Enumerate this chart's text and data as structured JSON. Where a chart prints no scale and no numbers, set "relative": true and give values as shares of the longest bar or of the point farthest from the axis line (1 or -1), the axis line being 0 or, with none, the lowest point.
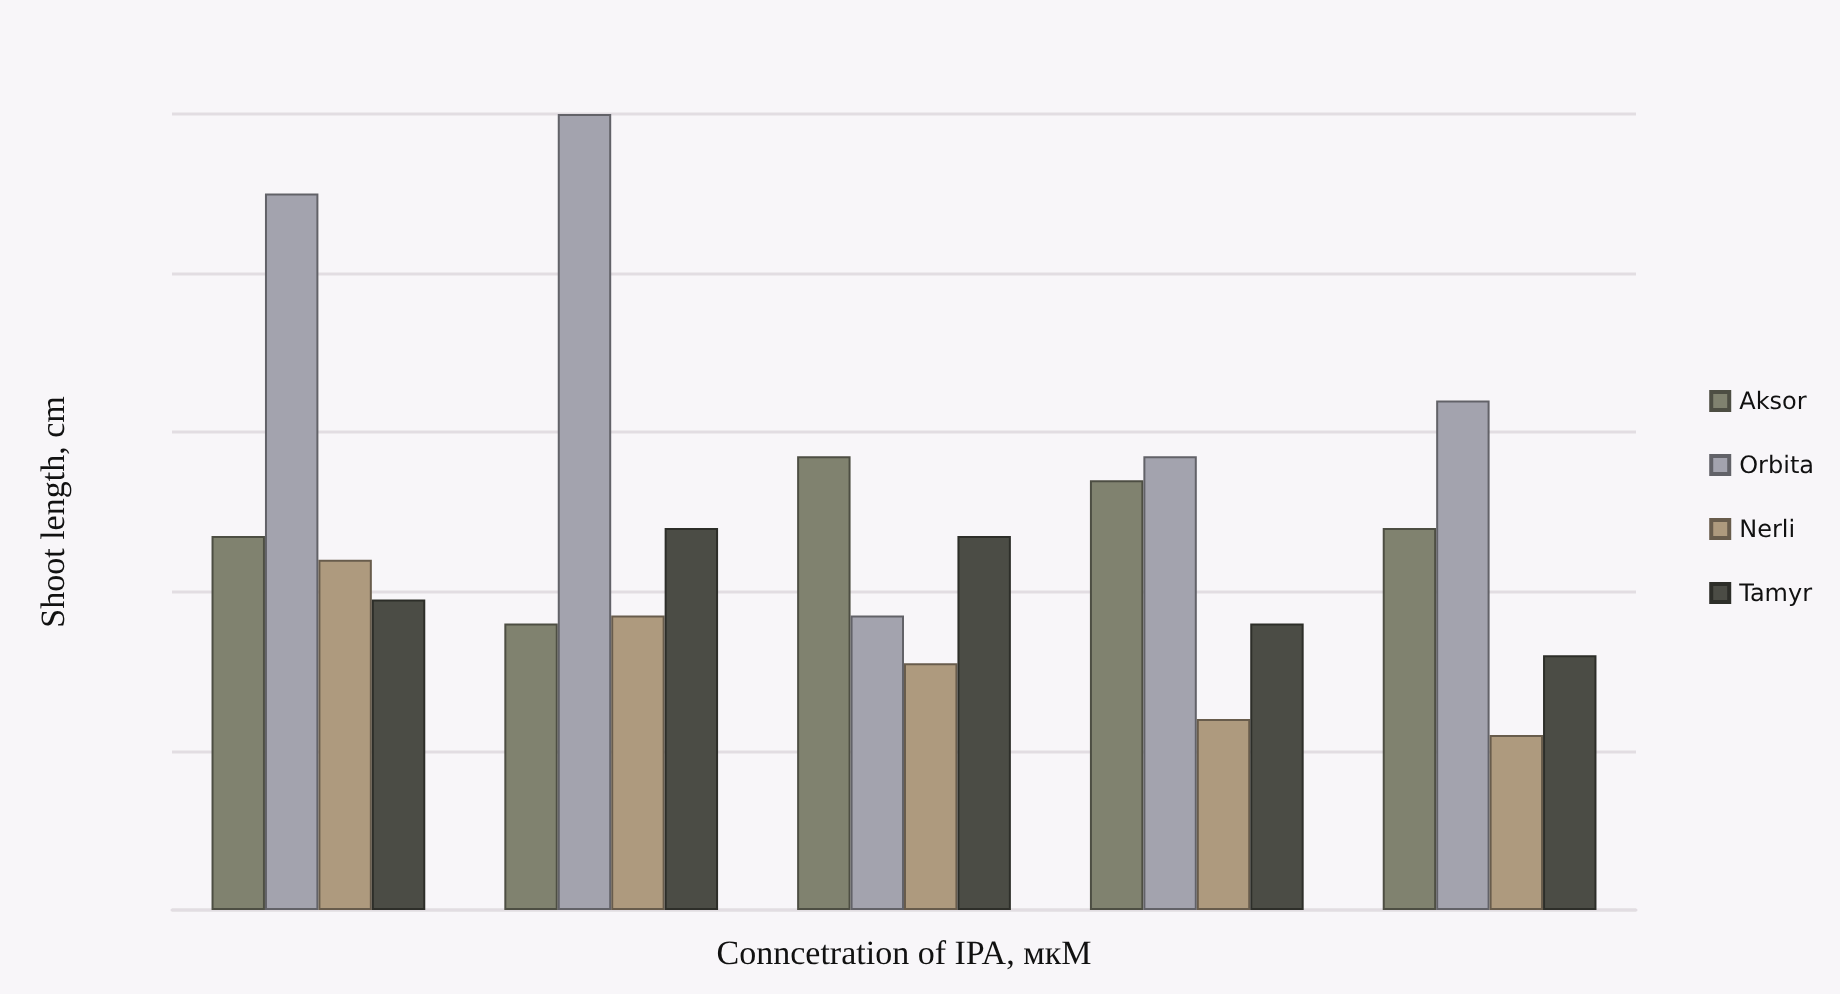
{
  "chart_data": {
    "type": "bar",
    "relative": true,
    "xlabel": "Conncetration of IPA, мкМ",
    "ylabel": "Shoot length, cm",
    "categories": [
      null,
      null,
      null,
      null,
      null
    ],
    "series": [
      {
        "name": "Aksor",
        "color": "#80826f",
        "values": [
          0.47,
          0.36,
          0.57,
          0.54,
          0.48
        ]
      },
      {
        "name": "Orbita",
        "color": "#a3a3ae",
        "values": [
          0.9,
          1,
          0.37,
          0.57,
          0.64
        ]
      },
      {
        "name": "Nerli",
        "color": "#ae9a7e",
        "values": [
          0.44,
          0.37,
          0.31,
          0.24,
          0.22
        ]
      },
      {
        "name": "Tamyr",
        "color": "#4b4c45",
        "values": [
          0.39,
          0.48,
          0.47,
          0.36,
          0.32
        ]
      }
    ],
    "grid": "y",
    "legend": "right"
  }
}
